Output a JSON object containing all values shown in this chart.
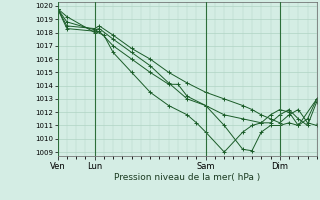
{
  "title": "",
  "xlabel": "Pression niveau de la mer( hPa )",
  "ylabel": "",
  "bg_color": "#d4ede4",
  "grid_color": "#b0d4c4",
  "line_color": "#1a5c28",
  "vline_color": "#2d6e3a",
  "ylim": [
    1009,
    1020
  ],
  "yticks": [
    1009,
    1010,
    1011,
    1012,
    1013,
    1014,
    1015,
    1016,
    1017,
    1018,
    1019,
    1020
  ],
  "day_labels": [
    "Ven",
    "Lun",
    "Sam",
    "Dim"
  ],
  "day_positions": [
    0,
    24,
    96,
    144
  ],
  "total_hours": 168,
  "series": [
    [
      1019.8,
      1019.2,
      1018.0,
      1018.1,
      1017.0,
      1016.0,
      1015.0,
      1014.1,
      1014.1,
      1013.2,
      1012.5,
      1011.0,
      1009.2,
      1009.1,
      1010.5,
      1011.0,
      1011.0,
      1011.2,
      1011.0,
      1013.0
    ],
    [
      1019.8,
      1018.8,
      1018.2,
      1018.3,
      1017.5,
      1016.5,
      1015.5,
      1014.2,
      1013.0,
      1012.5,
      1011.8,
      1011.5,
      1011.2,
      1011.2,
      1011.8,
      1012.2,
      1011.5,
      1011.0,
      1012.8
    ],
    [
      1019.8,
      1018.5,
      1018.3,
      1018.5,
      1017.8,
      1016.8,
      1016.0,
      1015.0,
      1014.2,
      1013.5,
      1013.0,
      1012.5,
      1012.2,
      1011.8,
      1011.5,
      1011.2,
      1011.8,
      1012.2,
      1011.2,
      1011.0,
      1013.0
    ],
    [
      1019.8,
      1018.3,
      1018.1,
      1017.8,
      1016.5,
      1015.0,
      1013.5,
      1012.5,
      1011.8,
      1011.2,
      1010.5,
      1009.0,
      1010.5,
      1011.0,
      1011.2,
      1011.8,
      1012.2,
      1012.0,
      1011.0,
      1011.5,
      1013.0
    ]
  ],
  "series_x": [
    [
      0,
      6,
      24,
      27,
      36,
      48,
      60,
      72,
      78,
      84,
      96,
      108,
      120,
      126,
      132,
      138,
      144,
      150,
      156,
      168
    ],
    [
      0,
      6,
      24,
      27,
      36,
      48,
      60,
      72,
      84,
      96,
      108,
      120,
      132,
      138,
      144,
      150,
      156,
      162,
      168
    ],
    [
      0,
      6,
      24,
      27,
      36,
      48,
      60,
      72,
      84,
      96,
      108,
      120,
      126,
      132,
      138,
      144,
      150,
      156,
      162,
      168,
      172
    ],
    [
      0,
      6,
      24,
      30,
      36,
      48,
      60,
      72,
      84,
      90,
      96,
      108,
      120,
      126,
      132,
      138,
      144,
      150,
      156,
      162,
      168
    ]
  ]
}
